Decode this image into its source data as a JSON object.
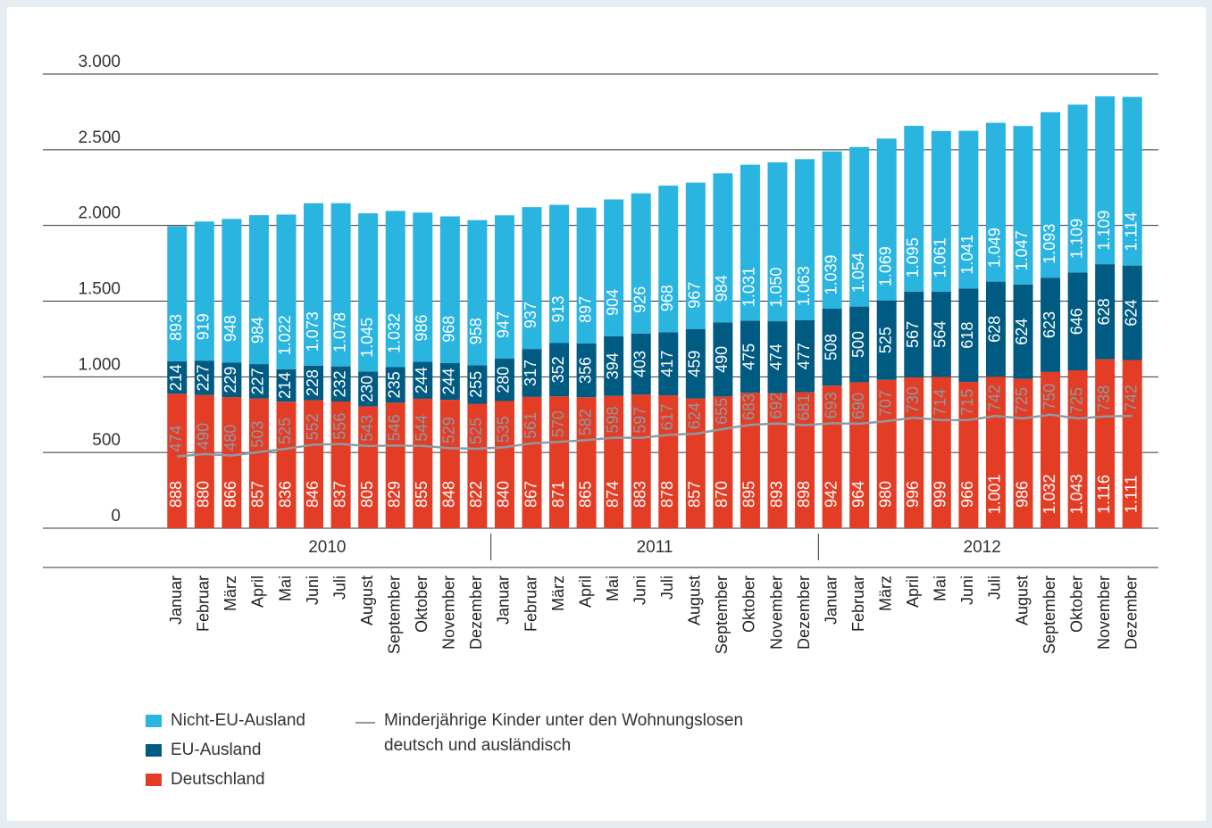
{
  "chart_data": {
    "type": "bar",
    "stacked": true,
    "categories": [
      "Januar",
      "Februar",
      "März",
      "April",
      "Mai",
      "Juni",
      "Juli",
      "August",
      "September",
      "Oktober",
      "November",
      "Dezember",
      "Januar",
      "Februar",
      "März",
      "April",
      "Mai",
      "Juni",
      "Juli",
      "August",
      "September",
      "Oktober",
      "November",
      "Dezember",
      "Januar",
      "Februar",
      "März",
      "April",
      "Mai",
      "Juni",
      "Juli",
      "August",
      "September",
      "Oktober",
      "November",
      "Dezember"
    ],
    "years": [
      "2010",
      "2011",
      "2012"
    ],
    "ylim": [
      0,
      3000
    ],
    "yticks": [
      0,
      500,
      {
        "value": 1000,
        "label": "1.000"
      },
      {
        "value": 1500,
        "label": "1.500"
      },
      {
        "value": 2000,
        "label": "2.000"
      },
      {
        "value": 2500,
        "label": "2.500"
      },
      {
        "value": 3000,
        "label": "3.000"
      }
    ],
    "grid": true,
    "series": [
      {
        "name": "Deutschland",
        "color": "#e43d25",
        "values": [
          888,
          880,
          866,
          857,
          836,
          846,
          837,
          805,
          829,
          855,
          848,
          822,
          840,
          867,
          871,
          865,
          874,
          883,
          878,
          857,
          870,
          895,
          893,
          898,
          942,
          964,
          980,
          996,
          999,
          966,
          1001,
          986,
          1032,
          1043,
          1116,
          1111
        ],
        "value_labels": [
          "888",
          "880",
          "866",
          "857",
          "836",
          "846",
          "837",
          "805",
          "829",
          "855",
          "848",
          "822",
          "840",
          "867",
          "871",
          "865",
          "874",
          "883",
          "878",
          "857",
          "870",
          "895",
          "893",
          "898",
          "942",
          "964",
          "980",
          "996",
          "999",
          "966",
          "1.001",
          "986",
          "1.032",
          "1.043",
          "1.116",
          "1.111"
        ]
      },
      {
        "name": "EU-Ausland",
        "color": "#005b82",
        "values": [
          214,
          227,
          229,
          227,
          214,
          228,
          232,
          230,
          235,
          244,
          244,
          255,
          280,
          317,
          352,
          356,
          394,
          403,
          417,
          459,
          490,
          475,
          474,
          477,
          508,
          500,
          525,
          567,
          564,
          618,
          628,
          624,
          623,
          646,
          628,
          624
        ]
      },
      {
        "name": "Nicht-EU-Ausland",
        "color": "#2ab4e0",
        "values": [
          893,
          919,
          948,
          984,
          1022,
          1073,
          1078,
          1045,
          1032,
          986,
          968,
          958,
          947,
          937,
          913,
          897,
          904,
          926,
          968,
          967,
          984,
          1031,
          1050,
          1063,
          1039,
          1054,
          1069,
          1095,
          1061,
          1041,
          1049,
          1047,
          1093,
          1109,
          1109,
          1114
        ],
        "value_labels": [
          "893",
          "919",
          "948",
          "984",
          "1.022",
          "1.073",
          "1.078",
          "1.045",
          "1.032",
          "986",
          "968",
          "958",
          "947",
          "937",
          "913",
          "897",
          "904",
          "926",
          "968",
          "967",
          "984",
          "1.031",
          "1.050",
          "1.063",
          "1.039",
          "1.054",
          "1.069",
          "1.095",
          "1.061",
          "1.041",
          "1.049",
          "1.047",
          "1.093",
          "1.109",
          "1.109",
          "1.114"
        ]
      },
      {
        "name": "Minderjährige Kinder unter den Wohnungslosen deutsch und ausländisch",
        "type": "line",
        "color": "#8c9aa5",
        "values": [
          474,
          490,
          480,
          503,
          525,
          552,
          556,
          543,
          546,
          544,
          529,
          525,
          535,
          561,
          570,
          582,
          598,
          597,
          617,
          624,
          655,
          683,
          692,
          681,
          693,
          690,
          707,
          730,
          714,
          715,
          742,
          725,
          750,
          725,
          738,
          742
        ]
      }
    ]
  }
}
